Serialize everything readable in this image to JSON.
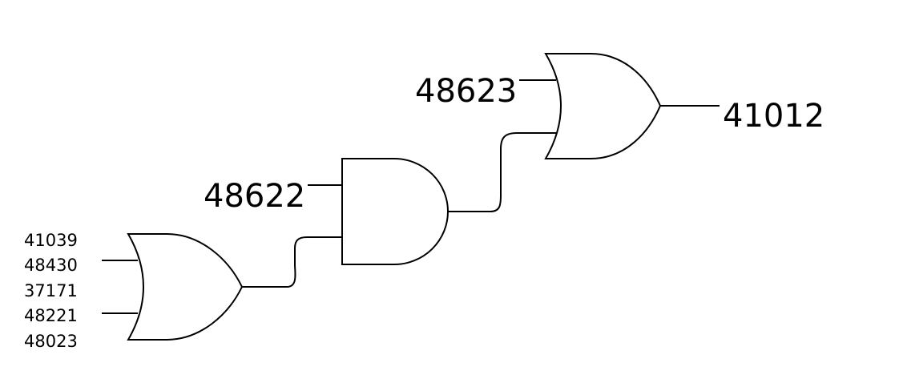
{
  "diagram": {
    "colors": {
      "stroke": "#000000",
      "background": "#ffffff"
    },
    "gates": [
      {
        "id": "or-gate-1",
        "type": "OR",
        "inputs": [
          "41039",
          "48430",
          "37171",
          "48221",
          "48023"
        ]
      },
      {
        "id": "and-gate-1",
        "type": "AND",
        "inputs": [
          "48622",
          "or-gate-1"
        ]
      },
      {
        "id": "or-gate-2",
        "type": "OR",
        "inputs": [
          "48623",
          "and-gate-1"
        ],
        "output": "41012"
      }
    ],
    "labels": {
      "or1_inputs": [
        "41039",
        "48430",
        "37171",
        "48221",
        "48023"
      ],
      "and_input": "48622",
      "or2_input": "48623",
      "output": "41012"
    }
  }
}
